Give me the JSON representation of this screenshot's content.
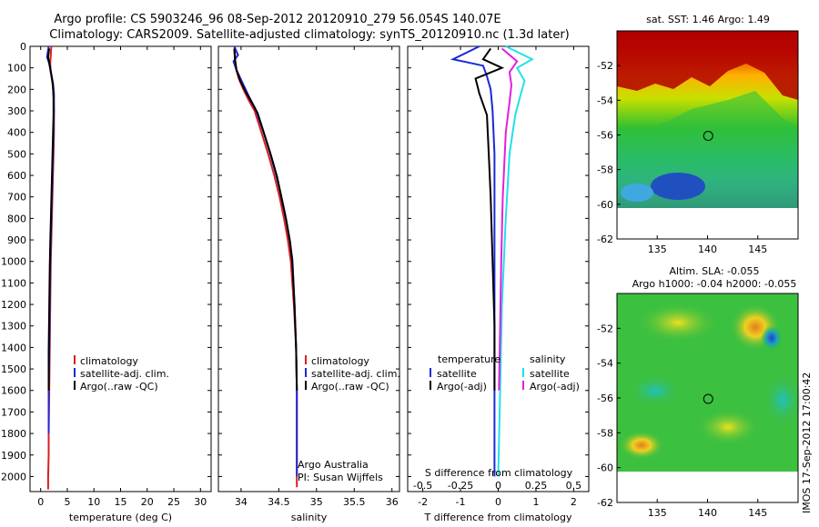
{
  "title_line1": "Argo profile: CS 5903246_96 08-Sep-2012 20120910_279 56.054S 140.07E",
  "title_line2": "Climatology: CARS2009. Satellite-adjusted climatology: synTS_20120910.nc (1.3d later)",
  "colors": {
    "climatology": "#d62020",
    "satellite": "#1a2ad6",
    "argo": "#000000",
    "sal_satellite": "#22e0e8",
    "sal_argo": "#e020e0"
  },
  "chart_data": [
    {
      "type": "line",
      "id": "temperature",
      "xlabel": "temperature (deg C)",
      "ylabel": "",
      "xlim": [
        -2,
        32
      ],
      "ylim": [
        2070,
        0
      ],
      "xticks": [
        0,
        5,
        10,
        15,
        20,
        25,
        30
      ],
      "yticks": [
        0,
        100,
        200,
        300,
        400,
        500,
        600,
        700,
        800,
        900,
        1000,
        1100,
        1200,
        1300,
        1400,
        1500,
        1600,
        1700,
        1800,
        1900,
        2000
      ],
      "legend": [
        "climatology",
        "satellite-adj. clim.",
        "Argo(..raw -QC)"
      ],
      "series": [
        {
          "name": "climatology",
          "color": "#d62020",
          "x": [
            2.0,
            1.9,
            1.8,
            1.9,
            2.2,
            2.4,
            2.5,
            2.5,
            2.4,
            2.3,
            2.2,
            2.1,
            2.0,
            1.9,
            1.8,
            1.7,
            1.6,
            1.5,
            1.5,
            1.4,
            1.4
          ],
          "y": [
            0,
            40,
            80,
            120,
            170,
            220,
            300,
            400,
            500,
            600,
            700,
            800,
            900,
            1000,
            1200,
            1400,
            1600,
            1800,
            1900,
            2000,
            2060
          ]
        },
        {
          "name": "satellite-adj. clim.",
          "color": "#1a2ad6",
          "x": [
            1.5,
            1.2,
            1.6,
            1.9,
            2.3,
            2.5,
            2.5,
            2.4,
            2.3,
            2.2,
            2.1,
            2.0,
            1.9,
            1.8,
            1.7,
            1.6,
            1.5,
            1.5
          ],
          "y": [
            0,
            50,
            80,
            120,
            170,
            220,
            300,
            400,
            500,
            600,
            700,
            800,
            900,
            1000,
            1200,
            1400,
            1600,
            1800
          ]
        },
        {
          "name": "Argo(..raw -QC)",
          "color": "#000000",
          "x": [
            1.6,
            1.4,
            1.7,
            2.0,
            2.3,
            2.4,
            2.4,
            2.3,
            2.2,
            2.1,
            2.0,
            1.9,
            1.8,
            1.7,
            1.6,
            1.5,
            1.5
          ],
          "y": [
            10,
            50,
            90,
            130,
            180,
            240,
            320,
            420,
            520,
            620,
            720,
            820,
            920,
            1020,
            1220,
            1420,
            1600
          ]
        }
      ]
    },
    {
      "type": "line",
      "id": "salinity",
      "xlabel": "salinity",
      "xlim": [
        33.7,
        36.1
      ],
      "ylim": [
        2070,
        0
      ],
      "xticks": [
        34,
        34.5,
        35,
        35.5,
        36
      ],
      "legend": [
        "climatology",
        "satellite-adj. clim.",
        "Argo(..raw -QC)"
      ],
      "annotation": [
        "Argo Australia",
        "PI: Susan Wijffels"
      ],
      "series": [
        {
          "name": "climatology",
          "color": "#d62020",
          "x": [
            33.92,
            33.92,
            33.93,
            33.97,
            34.03,
            34.1,
            34.18,
            34.27,
            34.36,
            34.44,
            34.51,
            34.57,
            34.62,
            34.66,
            34.7,
            34.73,
            34.74,
            34.74,
            34.74
          ],
          "y": [
            0,
            50,
            100,
            150,
            200,
            250,
            300,
            400,
            500,
            600,
            700,
            800,
            900,
            1000,
            1200,
            1400,
            1600,
            1800,
            2050
          ]
        },
        {
          "name": "satellite-adj. clim.",
          "color": "#1a2ad6",
          "x": [
            33.91,
            33.96,
            33.9,
            33.94,
            34.02,
            34.1,
            34.19,
            34.29,
            34.38,
            34.46,
            34.53,
            34.59,
            34.64,
            34.68,
            34.71,
            34.73,
            34.74,
            34.74,
            34.74
          ],
          "y": [
            0,
            40,
            70,
            110,
            170,
            230,
            290,
            390,
            490,
            590,
            690,
            790,
            890,
            990,
            1200,
            1400,
            1600,
            1800,
            2000
          ]
        },
        {
          "name": "Argo(..raw -QC)",
          "color": "#000000",
          "x": [
            33.91,
            33.92,
            33.94,
            33.99,
            34.06,
            34.14,
            34.22,
            34.31,
            34.4,
            34.48,
            34.54,
            34.6,
            34.65,
            34.68,
            34.71,
            34.73,
            34.74
          ],
          "y": [
            10,
            60,
            110,
            160,
            210,
            260,
            310,
            410,
            510,
            610,
            710,
            810,
            910,
            1010,
            1210,
            1410,
            1600
          ]
        }
      ]
    },
    {
      "type": "line",
      "id": "difference",
      "xlabel": "T difference from climatology",
      "xlabel_top": "S difference from climatology",
      "xlim": [
        -2.4,
        2.4
      ],
      "ylim": [
        2070,
        0
      ],
      "xticks": [
        -2,
        -1,
        0,
        1,
        2
      ],
      "xticks_s": [
        -0.5,
        -0.25,
        0,
        0.25,
        0.5
      ],
      "legend_left_title": "temperature",
      "legend_right_title": "salinity",
      "legend_left": [
        "satellite",
        "Argo(-adj)"
      ],
      "legend_right": [
        "satellite",
        "Argo(-adj)"
      ],
      "series": [
        {
          "name": "temperature satellite",
          "color": "#1a2ad6",
          "x": [
            -0.5,
            -1.2,
            -0.4,
            -0.3,
            -0.2,
            -0.15,
            -0.1,
            -0.1,
            -0.1,
            -0.1,
            -0.1
          ],
          "y": [
            0,
            60,
            90,
            140,
            200,
            300,
            500,
            800,
            1200,
            1600,
            2000
          ]
        },
        {
          "name": "temperature Argo(-adj)",
          "color": "#000000",
          "x": [
            -0.2,
            -0.4,
            0.1,
            -0.6,
            -0.5,
            -0.3,
            -0.25,
            -0.2,
            -0.15,
            -0.1,
            -0.1
          ],
          "y": [
            10,
            60,
            100,
            150,
            220,
            320,
            500,
            700,
            1000,
            1300,
            1600
          ]
        },
        {
          "name": "salinity satellite",
          "color": "#22e0e8",
          "x": [
            0.2,
            0.9,
            0.5,
            0.7,
            0.6,
            0.45,
            0.3,
            0.2,
            0.1,
            0.05,
            0.0
          ],
          "y": [
            0,
            60,
            100,
            160,
            220,
            320,
            500,
            800,
            1200,
            1600,
            2000
          ]
        },
        {
          "name": "salinity Argo(-adj)",
          "color": "#e020e0",
          "x": [
            0.1,
            0.5,
            0.3,
            0.35,
            0.3,
            0.2,
            0.12,
            0.08,
            0.05,
            0.02
          ],
          "y": [
            10,
            70,
            120,
            180,
            260,
            400,
            700,
            1000,
            1300,
            1600
          ]
        }
      ]
    },
    {
      "type": "heatmap",
      "id": "sst_map",
      "title": "sat. SST: 1.46 Argo: 1.49",
      "xlim": [
        131,
        149
      ],
      "ylim": [
        -62,
        -50
      ],
      "xticks": [
        135,
        140,
        145
      ],
      "yticks": [
        -52,
        -54,
        -56,
        -58,
        -60,
        -62
      ],
      "marker": {
        "lon": 140.07,
        "lat": -56.054
      }
    },
    {
      "type": "heatmap",
      "id": "sla_map",
      "title_line1": "Altim. SLA: -0.055",
      "title_line2": "Argo h1000: -0.04 h2000: -0.055",
      "xlim": [
        131,
        149
      ],
      "ylim": [
        -62,
        -50
      ],
      "xticks": [
        135,
        140,
        145
      ],
      "yticks": [
        -52,
        -54,
        -56,
        -58,
        -60,
        -62
      ],
      "marker": {
        "lon": 140.07,
        "lat": -56.054
      }
    }
  ],
  "side_stamp": "IMOS 17-Sep-2012 17:00:42"
}
